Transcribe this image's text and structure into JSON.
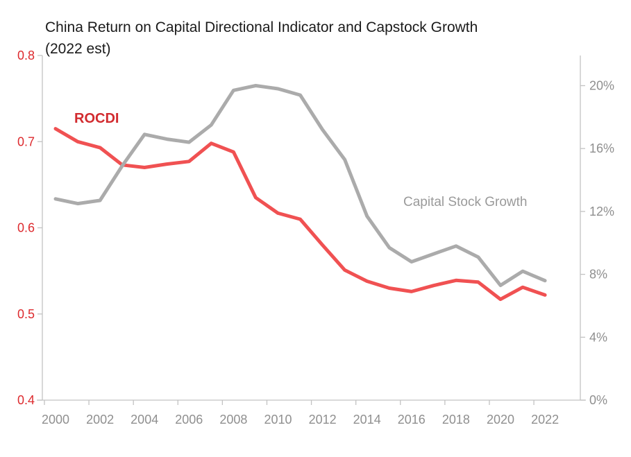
{
  "title": {
    "line1": "China Return on Capital Directional Indicator and Capstock Growth",
    "line2": "(2022 est)"
  },
  "chart_data": {
    "type": "line",
    "x": [
      2000,
      2001,
      2002,
      2003,
      2004,
      2005,
      2006,
      2007,
      2008,
      2009,
      2010,
      2011,
      2012,
      2013,
      2014,
      2015,
      2016,
      2017,
      2018,
      2019,
      2020,
      2021,
      2022
    ],
    "x_tick_labels": [
      "2000",
      "2002",
      "2004",
      "2006",
      "2008",
      "2010",
      "2012",
      "2014",
      "2016",
      "2018",
      "2020",
      "2022"
    ],
    "series": [
      {
        "name": "ROCDI",
        "axis": "left",
        "color": "#f05152",
        "values": [
          0.715,
          0.7,
          0.693,
          0.673,
          0.67,
          0.674,
          0.677,
          0.698,
          0.688,
          0.635,
          0.617,
          0.61,
          0.58,
          0.551,
          0.538,
          0.53,
          0.526,
          0.533,
          0.539,
          0.537,
          0.517,
          0.531,
          0.522
        ]
      },
      {
        "name": "Capital Stock Growth",
        "axis": "right",
        "unit": "%",
        "color": "#ababab",
        "values": [
          12.8,
          12.5,
          12.7,
          14.9,
          16.9,
          16.6,
          16.4,
          17.5,
          19.7,
          20.0,
          19.8,
          19.4,
          17.2,
          15.3,
          11.7,
          9.7,
          8.8,
          9.3,
          9.8,
          9.1,
          7.3,
          8.2,
          7.6
        ]
      }
    ],
    "left_axis": {
      "min": 0.4,
      "max": 0.8,
      "ticks": [
        0.8,
        0.7,
        0.6,
        0.5,
        0.4
      ],
      "tick_labels": [
        "0.8",
        "0.7",
        "0.6",
        "0.5",
        "0.4"
      ],
      "label_color": "#dd2a2e"
    },
    "right_axis": {
      "min": 0,
      "max": 22,
      "ticks": [
        20,
        16,
        12,
        8,
        4,
        0
      ],
      "tick_labels": [
        "20%",
        "16%",
        "12%",
        "8%",
        "4%",
        "0%"
      ],
      "label_color": "#8f8f8f"
    },
    "grid": "off",
    "legend_position": "inline-annotations"
  }
}
